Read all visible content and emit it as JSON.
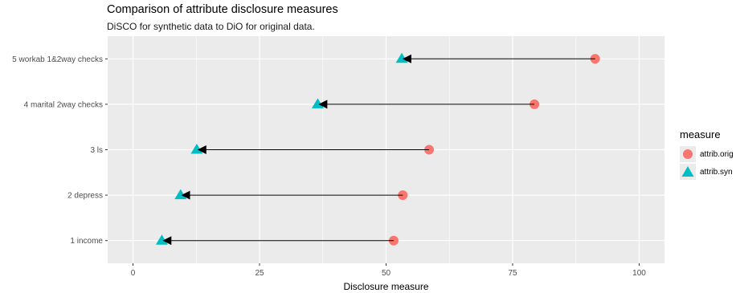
{
  "chart_data": {
    "type": "dumbbell",
    "title": "Comparison of attribute disclosure measures",
    "subtitle": "DiSCO for synthetic data  to DiO for original data.",
    "xlabel": "Disclosure measure",
    "ylabel": "",
    "xlim": [
      -5,
      105
    ],
    "x_ticks": [
      0,
      25,
      50,
      75,
      100
    ],
    "grid": true,
    "legend": {
      "title": "measure",
      "position": "right"
    },
    "categories": [
      "1 income",
      "2 depress",
      "3 ls",
      "4 marital 2way checks",
      "5 workab 1&2way checks"
    ],
    "series": [
      {
        "name": "attrib.orig",
        "shape": "circle",
        "color": "#F8766D",
        "values": [
          51.5,
          53.3,
          58.5,
          79.3,
          91.3
        ]
      },
      {
        "name": "attrib.syn",
        "shape": "triangle",
        "color": "#00BFC4",
        "values": [
          5.7,
          9.4,
          12.6,
          36.5,
          53.1
        ]
      }
    ],
    "arrows": "from attrib.orig to attrib.syn"
  }
}
